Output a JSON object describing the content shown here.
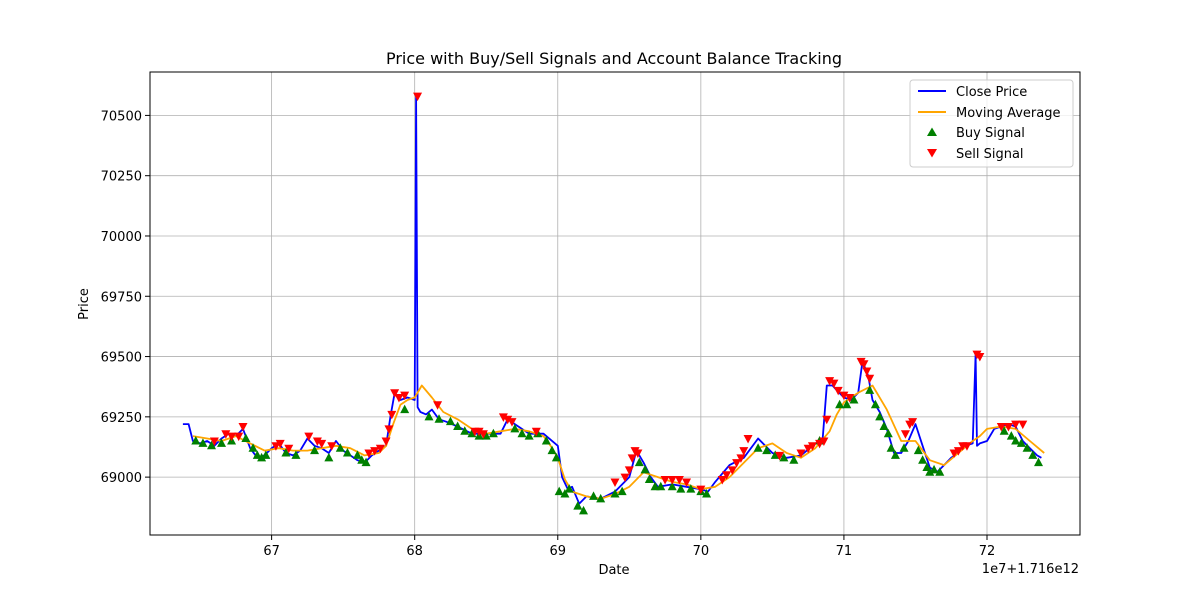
{
  "chart_data": {
    "type": "line",
    "title": "Price with Buy/Sell Signals and Account Balance Tracking",
    "xlabel": "Date",
    "ylabel": "Price",
    "x_offset_label": "1e7+1.716e12",
    "xlim": [
      66.15,
      72.65
    ],
    "ylim": [
      68760,
      70680
    ],
    "xticks": [
      67,
      68,
      69,
      70,
      71,
      72
    ],
    "xtick_labels": [
      "67",
      "68",
      "69",
      "70",
      "71",
      "72"
    ],
    "yticks": [
      69000,
      69250,
      69500,
      69750,
      70000,
      70250,
      70500
    ],
    "ytick_labels": [
      "69000",
      "69250",
      "69500",
      "69750",
      "70000",
      "70250",
      "70500"
    ],
    "grid": true,
    "legend_position": "top-right",
    "colors": {
      "close": "#0000ff",
      "ma": "#ffa500",
      "buy": "#008000",
      "sell": "#ff0000",
      "grid": "#b0b0b0"
    },
    "series": [
      {
        "name": "Close Price",
        "kind": "line",
        "x": [
          66.38,
          66.42,
          66.45,
          66.5,
          66.55,
          66.6,
          66.65,
          66.7,
          66.75,
          66.8,
          66.85,
          66.9,
          66.95,
          67.0,
          67.05,
          67.1,
          67.15,
          67.2,
          67.25,
          67.3,
          67.35,
          67.4,
          67.45,
          67.5,
          67.55,
          67.6,
          67.65,
          67.7,
          67.75,
          67.8,
          67.83,
          67.86,
          67.9,
          67.95,
          68.0,
          68.01,
          68.02,
          68.04,
          68.08,
          68.12,
          68.17,
          68.22,
          68.3,
          68.4,
          68.5,
          68.6,
          68.65,
          68.7,
          68.8,
          68.9,
          69.0,
          69.03,
          69.07,
          69.1,
          69.15,
          69.2,
          69.3,
          69.4,
          69.5,
          69.55,
          69.6,
          69.65,
          69.7,
          69.8,
          69.9,
          70.0,
          70.05,
          70.1,
          70.2,
          70.3,
          70.4,
          70.5,
          70.6,
          70.7,
          70.8,
          70.85,
          70.88,
          70.92,
          70.95,
          71.0,
          71.05,
          71.1,
          71.13,
          71.17,
          71.2,
          71.25,
          71.3,
          71.35,
          71.4,
          71.45,
          71.5,
          71.55,
          71.6,
          71.65,
          71.7,
          71.75,
          71.8,
          71.85,
          71.9,
          71.92,
          71.93,
          71.95,
          72.0,
          72.05,
          72.1,
          72.15,
          72.2,
          72.25,
          72.3,
          72.35,
          72.38
        ],
        "y": [
          69220,
          69220,
          69150,
          69140,
          69150,
          69130,
          69160,
          69180,
          69170,
          69200,
          69120,
          69080,
          69090,
          69120,
          69140,
          69100,
          69090,
          69110,
          69160,
          69130,
          69120,
          69100,
          69150,
          69110,
          69090,
          69070,
          69060,
          69090,
          69110,
          69130,
          69250,
          69350,
          69320,
          69330,
          69320,
          70580,
          69290,
          69270,
          69260,
          69280,
          69240,
          69230,
          69210,
          69180,
          69180,
          69180,
          69240,
          69220,
          69180,
          69180,
          69130,
          69000,
          68950,
          68960,
          68890,
          68920,
          68910,
          68940,
          69000,
          69110,
          69060,
          69000,
          68960,
          68970,
          68960,
          68950,
          68940,
          68980,
          69050,
          69080,
          69160,
          69100,
          69080,
          69090,
          69140,
          69150,
          69380,
          69380,
          69360,
          69330,
          69320,
          69350,
          69480,
          69420,
          69320,
          69270,
          69200,
          69100,
          69100,
          69150,
          69220,
          69130,
          69040,
          69020,
          69050,
          69080,
          69100,
          69130,
          69140,
          69510,
          69130,
          69140,
          69150,
          69200,
          69210,
          69220,
          69210,
          69150,
          69120,
          69090,
          69080
        ]
      },
      {
        "name": "Moving Average",
        "kind": "line",
        "x": [
          66.45,
          66.55,
          66.65,
          66.75,
          66.85,
          66.95,
          67.05,
          67.15,
          67.25,
          67.35,
          67.45,
          67.55,
          67.65,
          67.75,
          67.8,
          67.85,
          67.9,
          67.95,
          68.0,
          68.05,
          68.12,
          68.2,
          68.3,
          68.4,
          68.5,
          68.6,
          68.7,
          68.8,
          68.9,
          68.95,
          69.0,
          69.05,
          69.1,
          69.2,
          69.3,
          69.4,
          69.5,
          69.6,
          69.7,
          69.8,
          69.9,
          70.0,
          70.1,
          70.2,
          70.3,
          70.4,
          70.5,
          70.6,
          70.7,
          70.8,
          70.9,
          70.95,
          71.0,
          71.1,
          71.2,
          71.3,
          71.4,
          71.5,
          71.6,
          71.7,
          71.8,
          71.9,
          71.95,
          72.0,
          72.1,
          72.2,
          72.3,
          72.4
        ],
        "y": [
          69170,
          69160,
          69150,
          69170,
          69140,
          69110,
          69120,
          69110,
          69110,
          69120,
          69130,
          69120,
          69090,
          69100,
          69130,
          69220,
          69300,
          69320,
          69330,
          69380,
          69330,
          69270,
          69240,
          69200,
          69180,
          69190,
          69200,
          69190,
          69170,
          69130,
          69080,
          68990,
          68940,
          68920,
          68910,
          68930,
          68960,
          69020,
          69000,
          68980,
          68970,
          68950,
          68960,
          69000,
          69060,
          69120,
          69140,
          69100,
          69080,
          69120,
          69190,
          69260,
          69310,
          69350,
          69380,
          69280,
          69150,
          69150,
          69070,
          69050,
          69100,
          69150,
          69170,
          69200,
          69210,
          69200,
          69150,
          69100
        ]
      },
      {
        "name": "Buy Signal",
        "kind": "scatter",
        "marker": "triangle-up",
        "x": [
          66.47,
          66.52,
          66.58,
          66.65,
          66.72,
          66.82,
          66.87,
          66.9,
          66.93,
          66.96,
          67.1,
          67.17,
          67.3,
          67.4,
          67.48,
          67.53,
          67.6,
          67.63,
          67.66,
          67.93,
          68.1,
          68.17,
          68.25,
          68.3,
          68.35,
          68.4,
          68.45,
          68.5,
          68.55,
          68.7,
          68.75,
          68.8,
          68.86,
          68.92,
          68.96,
          68.99,
          69.01,
          69.05,
          69.08,
          69.14,
          69.18,
          69.25,
          69.3,
          69.4,
          69.45,
          69.57,
          69.61,
          69.64,
          69.68,
          69.72,
          69.8,
          69.86,
          69.93,
          70.0,
          70.04,
          70.4,
          70.46,
          70.52,
          70.58,
          70.65,
          70.83,
          70.97,
          71.02,
          71.07,
          71.18,
          71.22,
          71.25,
          71.28,
          71.31,
          71.33,
          71.36,
          71.42,
          71.52,
          71.55,
          71.58,
          71.6,
          71.63,
          71.67,
          72.12,
          72.17,
          72.2,
          72.24,
          72.28,
          72.32,
          72.36
        ],
        "y": [
          69150,
          69140,
          69130,
          69140,
          69150,
          69160,
          69120,
          69090,
          69080,
          69090,
          69100,
          69090,
          69110,
          69080,
          69120,
          69100,
          69090,
          69070,
          69060,
          69280,
          69250,
          69240,
          69230,
          69210,
          69190,
          69180,
          69170,
          69170,
          69180,
          69200,
          69180,
          69170,
          69180,
          69150,
          69110,
          69080,
          68940,
          68930,
          68950,
          68880,
          68860,
          68920,
          68910,
          68930,
          68940,
          69060,
          69030,
          68990,
          68960,
          68960,
          68960,
          68950,
          68950,
          68940,
          68930,
          69120,
          69110,
          69090,
          69080,
          69070,
          69150,
          69300,
          69300,
          69320,
          69360,
          69300,
          69250,
          69210,
          69180,
          69120,
          69090,
          69120,
          69110,
          69070,
          69040,
          69020,
          69030,
          69020,
          69190,
          69170,
          69150,
          69140,
          69120,
          69090,
          69060
        ]
      },
      {
        "name": "Sell Signal",
        "kind": "scatter",
        "marker": "triangle-down",
        "x": [
          66.6,
          66.68,
          66.72,
          66.77,
          66.8,
          67.03,
          67.06,
          67.12,
          67.26,
          67.32,
          67.35,
          67.42,
          67.68,
          67.72,
          67.76,
          67.8,
          67.82,
          67.84,
          67.86,
          67.89,
          67.93,
          68.02,
          68.16,
          68.42,
          68.45,
          68.48,
          68.62,
          68.65,
          68.68,
          68.85,
          69.4,
          69.47,
          69.5,
          69.52,
          69.54,
          69.56,
          69.75,
          69.8,
          69.85,
          69.9,
          70.0,
          70.15,
          70.18,
          70.22,
          70.25,
          70.28,
          70.3,
          70.33,
          70.55,
          70.7,
          70.75,
          70.78,
          70.83,
          70.86,
          70.88,
          70.9,
          70.93,
          70.96,
          71.0,
          71.04,
          71.12,
          71.14,
          71.16,
          71.18,
          71.43,
          71.46,
          71.48,
          71.77,
          71.8,
          71.83,
          71.86,
          71.93,
          71.95,
          72.1,
          72.15,
          72.2,
          72.25
        ],
        "y": [
          69150,
          69180,
          69170,
          69170,
          69210,
          69130,
          69140,
          69120,
          69170,
          69150,
          69140,
          69130,
          69100,
          69110,
          69120,
          69150,
          69200,
          69260,
          69350,
          69330,
          69340,
          70580,
          69300,
          69190,
          69190,
          69180,
          69250,
          69240,
          69230,
          69190,
          68980,
          69000,
          69030,
          69080,
          69110,
          69100,
          68990,
          68990,
          68990,
          68980,
          68950,
          68990,
          69010,
          69030,
          69060,
          69080,
          69110,
          69160,
          69090,
          69100,
          69120,
          69130,
          69140,
          69150,
          69240,
          69400,
          69390,
          69360,
          69340,
          69330,
          69480,
          69470,
          69440,
          69410,
          69180,
          69220,
          69230,
          69100,
          69110,
          69130,
          69130,
          69510,
          69500,
          69210,
          69210,
          69220,
          69220
        ]
      }
    ]
  }
}
